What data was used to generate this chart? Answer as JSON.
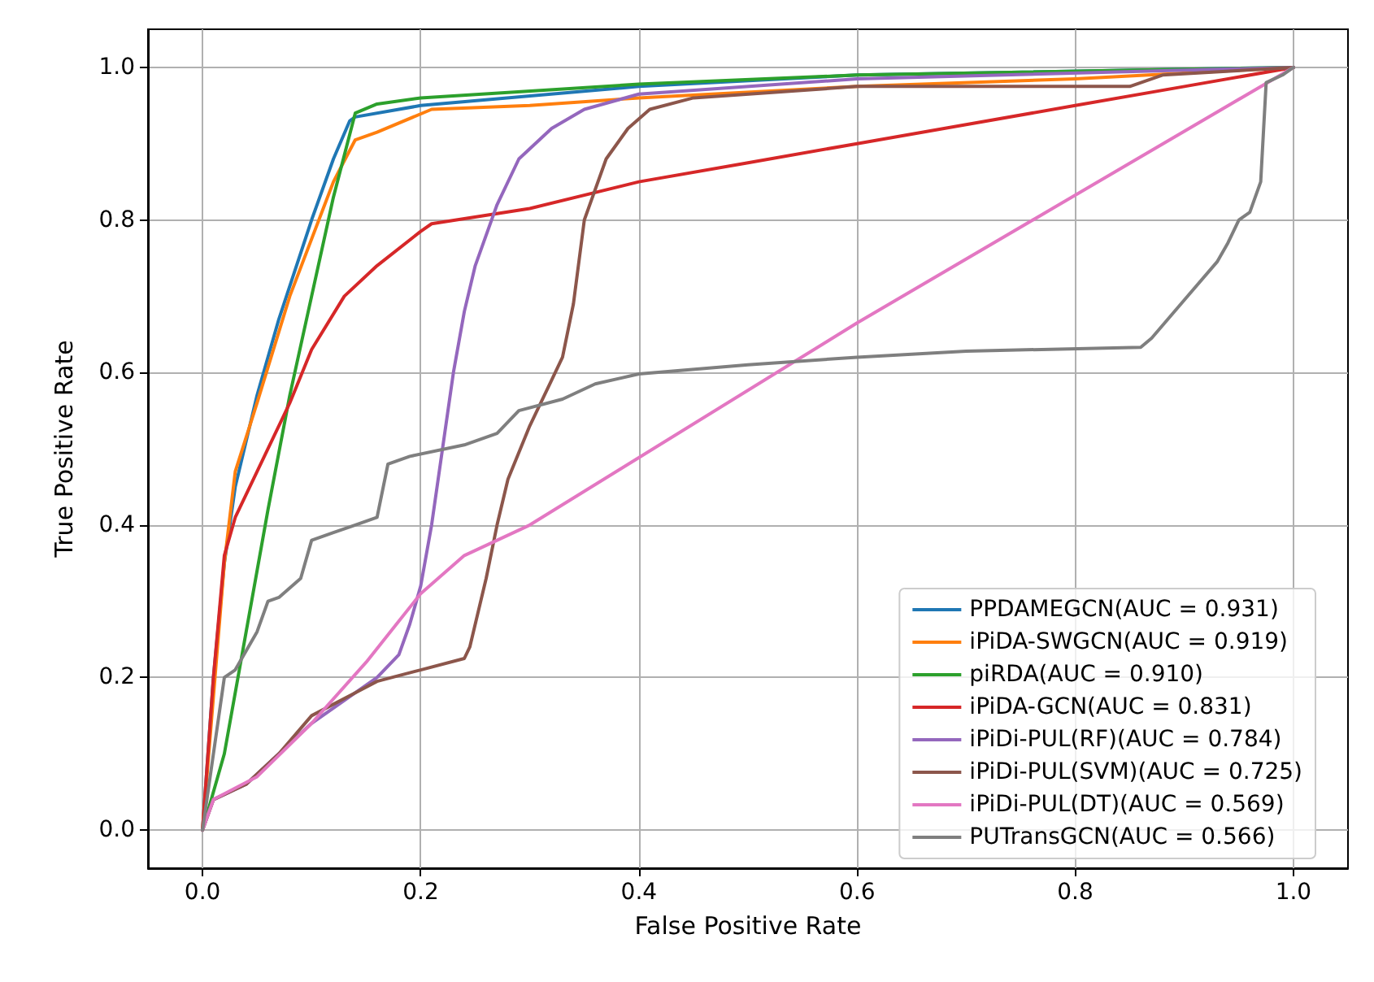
{
  "chart_data": {
    "type": "line",
    "xlabel": "False Positive Rate",
    "ylabel": "True Positive Rate",
    "xlim": [
      -0.05,
      1.05
    ],
    "ylim": [
      -0.05,
      1.05
    ],
    "xticks": [
      {
        "value": 0,
        "label": "0.0"
      },
      {
        "value": 0.2,
        "label": "0.2"
      },
      {
        "value": 0.4,
        "label": "0.4"
      },
      {
        "value": 0.6,
        "label": "0.6"
      },
      {
        "value": 0.8,
        "label": "0.8"
      },
      {
        "value": 1,
        "label": "1.0"
      }
    ],
    "yticks": [
      {
        "value": 0,
        "label": "0.0"
      },
      {
        "value": 0.2,
        "label": "0.2"
      },
      {
        "value": 0.4,
        "label": "0.4"
      },
      {
        "value": 0.6,
        "label": "0.6"
      },
      {
        "value": 0.8,
        "label": "0.8"
      },
      {
        "value": 1,
        "label": "1.0"
      }
    ],
    "grid": true,
    "legend": "bottom right",
    "series": [
      {
        "name": "PPDAMEGCN(AUC = 0.931)",
        "color": "#1f77b4",
        "x": [
          0,
          0.01,
          0.02,
          0.03,
          0.05,
          0.07,
          0.1,
          0.12,
          0.135,
          0.14,
          0.2,
          0.4,
          0.6,
          1
        ],
        "values": [
          0,
          0.2,
          0.35,
          0.45,
          0.57,
          0.67,
          0.8,
          0.88,
          0.93,
          0.935,
          0.95,
          0.975,
          0.99,
          1
        ]
      },
      {
        "name": "iPiDA-SWGCN(AUC = 0.919)",
        "color": "#ff7f0e",
        "x": [
          0,
          0.02,
          0.03,
          0.05,
          0.08,
          0.12,
          0.14,
          0.16,
          0.21,
          0.3,
          0.4,
          0.6,
          0.8,
          1
        ],
        "values": [
          0,
          0.35,
          0.47,
          0.56,
          0.7,
          0.85,
          0.905,
          0.915,
          0.945,
          0.95,
          0.96,
          0.975,
          0.985,
          1
        ]
      },
      {
        "name": "piRDA(AUC = 0.910)",
        "color": "#2ca02c",
        "x": [
          0,
          0.02,
          0.04,
          0.06,
          0.08,
          0.1,
          0.12,
          0.14,
          0.16,
          0.2,
          0.4,
          0.6,
          1
        ],
        "values": [
          0,
          0.1,
          0.26,
          0.42,
          0.57,
          0.7,
          0.83,
          0.94,
          0.952,
          0.96,
          0.978,
          0.99,
          1
        ]
      },
      {
        "name": "iPiDA-GCN(AUC = 0.831)",
        "color": "#d62728",
        "x": [
          0,
          0.01,
          0.02,
          0.03,
          0.05,
          0.08,
          0.1,
          0.13,
          0.16,
          0.2,
          0.21,
          0.3,
          0.4,
          0.5,
          0.6,
          0.7,
          0.8,
          0.9,
          1
        ],
        "values": [
          0,
          0.2,
          0.36,
          0.41,
          0.47,
          0.56,
          0.63,
          0.7,
          0.74,
          0.785,
          0.795,
          0.815,
          0.85,
          0.875,
          0.9,
          0.925,
          0.95,
          0.975,
          1
        ]
      },
      {
        "name": "iPiDi-PUL(RF)(AUC = 0.784)",
        "color": "#9467bd",
        "x": [
          0,
          0.01,
          0.04,
          0.07,
          0.1,
          0.13,
          0.16,
          0.18,
          0.19,
          0.2,
          0.21,
          0.22,
          0.23,
          0.24,
          0.25,
          0.27,
          0.29,
          0.32,
          0.35,
          0.4,
          0.6,
          1
        ],
        "values": [
          0,
          0.04,
          0.06,
          0.1,
          0.14,
          0.17,
          0.2,
          0.23,
          0.27,
          0.32,
          0.4,
          0.5,
          0.6,
          0.68,
          0.74,
          0.82,
          0.88,
          0.92,
          0.945,
          0.965,
          0.985,
          1
        ]
      },
      {
        "name": "iPiDi-PUL(SVM)(AUC = 0.725)",
        "color": "#8c564b",
        "x": [
          0,
          0.01,
          0.04,
          0.07,
          0.1,
          0.14,
          0.16,
          0.2,
          0.24,
          0.245,
          0.26,
          0.27,
          0.28,
          0.3,
          0.32,
          0.33,
          0.34,
          0.35,
          0.37,
          0.39,
          0.41,
          0.45,
          0.6,
          0.85,
          0.88,
          1
        ],
        "values": [
          0,
          0.04,
          0.06,
          0.1,
          0.15,
          0.18,
          0.195,
          0.21,
          0.225,
          0.24,
          0.33,
          0.4,
          0.46,
          0.53,
          0.59,
          0.62,
          0.69,
          0.8,
          0.88,
          0.92,
          0.945,
          0.96,
          0.975,
          0.975,
          0.99,
          1
        ]
      },
      {
        "name": "iPiDi-PUL(DT)(AUC = 0.569)",
        "color": "#e377c2",
        "x": [
          0,
          0.01,
          0.05,
          0.1,
          0.15,
          0.2,
          0.24,
          0.3,
          0.6,
          1
        ],
        "values": [
          0,
          0.04,
          0.07,
          0.14,
          0.22,
          0.31,
          0.36,
          0.4,
          0.665,
          1
        ]
      },
      {
        "name": "PUTransGCN(AUC = 0.566)",
        "color": "#7f7f7f",
        "x": [
          0,
          0.01,
          0.02,
          0.03,
          0.05,
          0.06,
          0.07,
          0.09,
          0.1,
          0.12,
          0.14,
          0.16,
          0.17,
          0.19,
          0.24,
          0.27,
          0.29,
          0.33,
          0.36,
          0.4,
          0.5,
          0.6,
          0.7,
          0.86,
          0.87,
          0.9,
          0.93,
          0.94,
          0.95,
          0.96,
          0.97,
          0.975,
          0.99,
          1
        ],
        "values": [
          0,
          0.1,
          0.2,
          0.21,
          0.26,
          0.3,
          0.305,
          0.33,
          0.38,
          0.39,
          0.4,
          0.41,
          0.48,
          0.49,
          0.505,
          0.52,
          0.55,
          0.565,
          0.585,
          0.598,
          0.61,
          0.62,
          0.628,
          0.633,
          0.645,
          0.695,
          0.745,
          0.77,
          0.8,
          0.81,
          0.85,
          0.98,
          0.99,
          1
        ]
      }
    ]
  }
}
